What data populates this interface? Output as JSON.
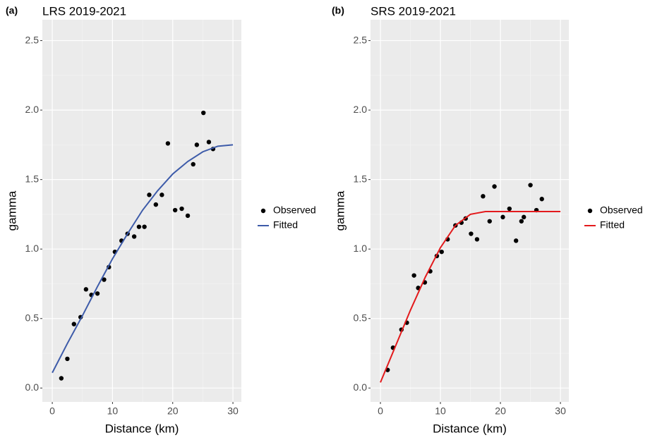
{
  "chart_data": [
    {
      "type": "scatter",
      "tag": "(a)",
      "title": "LRS 2019-2021",
      "x_label": "Distance (km)",
      "y_label": "gamma",
      "xlim": [
        -1.65,
        31.4
      ],
      "ylim": [
        -0.1,
        2.65
      ],
      "xticks": [
        0,
        10,
        20,
        30
      ],
      "yticks": [
        {
          "value": 0,
          "label": "0.0"
        },
        0.5,
        {
          "value": 1,
          "label": "1.0"
        },
        1.5,
        {
          "value": 2,
          "label": "2.0"
        },
        2.5
      ],
      "grid": true,
      "series": [
        {
          "name": "Observed",
          "type": "scatter",
          "color": "#000000",
          "x": [
            1.5,
            2.5,
            3.6,
            4.7,
            5.6,
            6.5,
            7.5,
            8.6,
            9.4,
            10.4,
            11.5,
            12.5,
            13.6,
            14.4,
            15.3,
            16.1,
            17.2,
            18.2,
            19.2,
            20.4,
            21.5,
            22.5,
            23.4,
            24.0,
            25.1,
            26.0,
            26.7
          ],
          "values": [
            0.07,
            0.21,
            0.46,
            0.51,
            0.71,
            0.67,
            0.68,
            0.78,
            0.87,
            0.98,
            1.06,
            1.11,
            1.09,
            1.16,
            1.16,
            1.39,
            1.32,
            1.39,
            1.76,
            1.28,
            1.29,
            1.24,
            1.61,
            1.75,
            1.98,
            1.77,
            1.72
          ]
        },
        {
          "name": "Fitted",
          "type": "line",
          "color": "#3d5ba9",
          "x": [
            0,
            2.5,
            5,
            7.5,
            10,
            12.5,
            15,
            17.5,
            20,
            22.5,
            25,
            27.5,
            30
          ],
          "values": [
            0.11,
            0.32,
            0.52,
            0.73,
            0.93,
            1.11,
            1.28,
            1.42,
            1.54,
            1.63,
            1.7,
            1.74,
            1.75
          ]
        }
      ]
    },
    {
      "type": "scatter",
      "tag": "(b)",
      "title": "SRS 2019-2021",
      "x_label": "Distance (km)",
      "y_label": "gamma",
      "xlim": [
        -1.65,
        31.4
      ],
      "ylim": [
        -0.1,
        2.65
      ],
      "xticks": [
        0,
        10,
        20,
        30
      ],
      "yticks": [
        {
          "value": 0,
          "label": "0.0"
        },
        0.5,
        {
          "value": 1,
          "label": "1.0"
        },
        1.5,
        {
          "value": 2,
          "label": "2.0"
        },
        2.5
      ],
      "grid": true,
      "series": [
        {
          "name": "Observed",
          "type": "scatter",
          "color": "#000000",
          "x": [
            1.2,
            2.1,
            3.5,
            4.4,
            5.6,
            6.3,
            7.4,
            8.3,
            9.4,
            10.2,
            11.2,
            12.5,
            13.5,
            14.2,
            15.1,
            16.1,
            17.1,
            18.2,
            19.0,
            20.4,
            21.5,
            22.6,
            23.5,
            23.9,
            25.0,
            26.0,
            26.9
          ],
          "values": [
            0.13,
            0.29,
            0.42,
            0.47,
            0.81,
            0.72,
            0.76,
            0.84,
            0.95,
            0.98,
            1.07,
            1.17,
            1.19,
            1.22,
            1.11,
            1.07,
            1.38,
            1.2,
            1.45,
            1.23,
            1.29,
            1.06,
            1.2,
            1.23,
            1.46,
            1.28,
            1.36
          ]
        },
        {
          "name": "Fitted",
          "type": "line",
          "color": "#e31a1c",
          "x": [
            0,
            2.5,
            5,
            7.5,
            10,
            12.5,
            15,
            17.5,
            30
          ],
          "values": [
            0.04,
            0.3,
            0.56,
            0.8,
            1.01,
            1.17,
            1.25,
            1.27,
            1.27
          ]
        }
      ]
    }
  ]
}
